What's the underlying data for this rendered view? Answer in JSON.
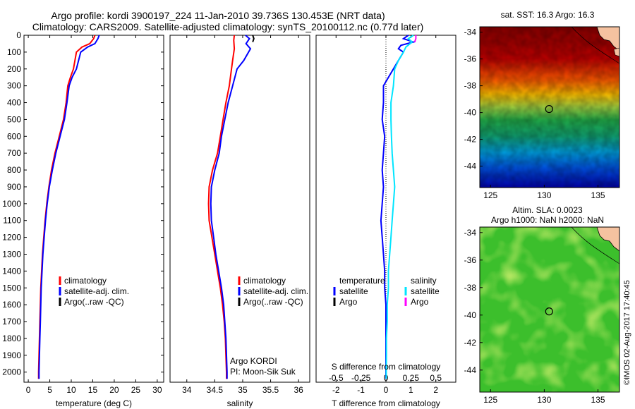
{
  "header": {
    "line1": "Argo profile: kordi 3900197_224 11-Jan-2010 39.736S 130.453E (NRT data)",
    "line2": "Climatology: CARS2009. Satellite-adjusted climatology: synTS_20100112.nc (0.77d later)"
  },
  "colors": {
    "climatology": "#ff0000",
    "satellite": "#0000ff",
    "argo": "#000000",
    "sal_satellite": "#00e5ff",
    "sal_argo": "#ff00ff"
  },
  "chart_data": [
    {
      "type": "line",
      "id": "temperature",
      "xlabel": "temperature (deg C)",
      "xlim": [
        -1,
        31.5
      ],
      "xticks": [
        0,
        5,
        10,
        15,
        20,
        25,
        30
      ],
      "ylim": [
        2060,
        0
      ],
      "yticks": [
        0,
        100,
        200,
        300,
        400,
        500,
        600,
        700,
        800,
        900,
        1000,
        1100,
        1200,
        1300,
        1400,
        1500,
        1600,
        1700,
        1800,
        1900,
        2000
      ],
      "legend": [
        "climatology",
        "satellite-adj. clim.",
        "Argo(..raw -QC)"
      ],
      "series": [
        {
          "name": "climatology",
          "color": "#ff0000",
          "points": [
            [
              15.5,
              0
            ],
            [
              15.2,
              20
            ],
            [
              14.3,
              50
            ],
            [
              12.5,
              70
            ],
            [
              11.2,
              100
            ],
            [
              10.5,
              200
            ],
            [
              9.8,
              250
            ],
            [
              9.2,
              300
            ],
            [
              8.8,
              400
            ],
            [
              8.2,
              500
            ],
            [
              7.2,
              600
            ],
            [
              6.2,
              700
            ],
            [
              5.4,
              800
            ],
            [
              4.8,
              900
            ],
            [
              4.3,
              1000
            ],
            [
              3.9,
              1100
            ],
            [
              3.6,
              1200
            ],
            [
              3.3,
              1300
            ],
            [
              3.1,
              1400
            ],
            [
              2.9,
              1500
            ],
            [
              2.8,
              1600
            ],
            [
              2.7,
              1700
            ],
            [
              2.6,
              1800
            ],
            [
              2.5,
              1900
            ],
            [
              2.4,
              2000
            ],
            [
              2.4,
              2040
            ]
          ]
        },
        {
          "name": "satellite-adj. clim.",
          "color": "#0000ff",
          "points": [
            [
              16.5,
              0
            ],
            [
              16.2,
              20
            ],
            [
              15.5,
              50
            ],
            [
              13.8,
              70
            ],
            [
              12.2,
              100
            ],
            [
              11.2,
              200
            ],
            [
              10.2,
              250
            ],
            [
              9.5,
              300
            ],
            [
              9.0,
              400
            ],
            [
              8.4,
              500
            ],
            [
              7.4,
              600
            ],
            [
              6.4,
              700
            ],
            [
              5.6,
              800
            ],
            [
              4.9,
              900
            ],
            [
              4.4,
              1000
            ],
            [
              4.0,
              1100
            ],
            [
              3.7,
              1200
            ],
            [
              3.4,
              1300
            ],
            [
              3.2,
              1400
            ],
            [
              3.0,
              1500
            ],
            [
              2.9,
              1600
            ],
            [
              2.8,
              1700
            ],
            [
              2.7,
              1800
            ],
            [
              2.6,
              1900
            ],
            [
              2.5,
              2000
            ],
            [
              2.5,
              2040
            ]
          ]
        }
      ]
    },
    {
      "type": "line",
      "id": "salinity",
      "xlabel": "salinity",
      "xlim": [
        33.7,
        36.2
      ],
      "xticks": [
        34,
        34.5,
        35,
        35.5,
        36
      ],
      "ylim": [
        2060,
        0
      ],
      "legend": [
        "climatology",
        "satellite-adj. clim.",
        "Argo(..raw -QC)"
      ],
      "series": [
        {
          "name": "climatology",
          "color": "#ff0000",
          "points": [
            [
              34.85,
              0
            ],
            [
              34.84,
              30
            ],
            [
              34.85,
              80
            ],
            [
              34.82,
              150
            ],
            [
              34.8,
              200
            ],
            [
              34.76,
              300
            ],
            [
              34.7,
              400
            ],
            [
              34.65,
              500
            ],
            [
              34.6,
              600
            ],
            [
              34.55,
              700
            ],
            [
              34.46,
              800
            ],
            [
              34.4,
              900
            ],
            [
              34.39,
              1000
            ],
            [
              34.4,
              1100
            ],
            [
              34.45,
              1200
            ],
            [
              34.5,
              1300
            ],
            [
              34.55,
              1400
            ],
            [
              34.6,
              1500
            ],
            [
              34.64,
              1600
            ],
            [
              34.67,
              1700
            ],
            [
              34.69,
              1800
            ],
            [
              34.7,
              1900
            ],
            [
              34.71,
              2000
            ],
            [
              34.71,
              2040
            ]
          ]
        },
        {
          "name": "satellite-adj. clim.",
          "color": "#0000ff",
          "points": [
            [
              35.05,
              0
            ],
            [
              35.12,
              20
            ],
            [
              35.06,
              50
            ],
            [
              35.14,
              80
            ],
            [
              35.02,
              150
            ],
            [
              34.9,
              200
            ],
            [
              34.82,
              300
            ],
            [
              34.74,
              400
            ],
            [
              34.68,
              500
            ],
            [
              34.62,
              600
            ],
            [
              34.58,
              700
            ],
            [
              34.5,
              800
            ],
            [
              34.44,
              900
            ],
            [
              34.43,
              1000
            ],
            [
              34.44,
              1100
            ],
            [
              34.48,
              1200
            ],
            [
              34.52,
              1300
            ],
            [
              34.57,
              1400
            ],
            [
              34.62,
              1500
            ],
            [
              34.66,
              1600
            ],
            [
              34.68,
              1700
            ],
            [
              34.7,
              1800
            ],
            [
              34.71,
              1900
            ],
            [
              34.72,
              2000
            ],
            [
              34.72,
              2040
            ]
          ]
        },
        {
          "name": "Argo(..raw -QC)",
          "color": "#000000",
          "points": [
            [
              35.18,
              0
            ],
            [
              35.2,
              20
            ],
            [
              35.18,
              40
            ]
          ]
        }
      ]
    },
    {
      "type": "line",
      "id": "difference",
      "xlabel": "T difference from climatology",
      "xlabel2": "S difference from climatology",
      "xlim": [
        -2.8,
        2.8
      ],
      "xticks": [
        -2,
        -1,
        0,
        1,
        2
      ],
      "xticks2": [
        -0.5,
        -0.25,
        0,
        0.25,
        0.5
      ],
      "xticks2_labels": [
        "-0.5",
        "-0.25",
        "0",
        "0.25",
        "0.5"
      ],
      "ylim": [
        2060,
        0
      ],
      "legend_temperature": {
        "title": "temperature",
        "items": [
          "satellite",
          "Argo"
        ]
      },
      "legend_salinity": {
        "title": "salinity",
        "items": [
          "satellite",
          "Argo"
        ]
      },
      "series": [
        {
          "name": "temperature satellite",
          "color": "#0000ff",
          "points": [
            [
              0.9,
              0
            ],
            [
              0.7,
              20
            ],
            [
              1.1,
              40
            ],
            [
              0.6,
              60
            ],
            [
              0.5,
              80
            ],
            [
              0.7,
              100
            ],
            [
              0.5,
              150
            ],
            [
              0.3,
              200
            ],
            [
              0.1,
              250
            ],
            [
              -0.1,
              300
            ],
            [
              -0.1,
              400
            ],
            [
              -0.15,
              500
            ],
            [
              -0.05,
              600
            ],
            [
              -0.1,
              700
            ],
            [
              -0.15,
              800
            ],
            [
              -0.1,
              900
            ],
            [
              -0.15,
              1000
            ],
            [
              -0.2,
              1100
            ],
            [
              -0.15,
              1200
            ],
            [
              -0.1,
              1300
            ],
            [
              -0.05,
              1400
            ],
            [
              -0.05,
              1500
            ],
            [
              0,
              1600
            ],
            [
              0,
              1700
            ],
            [
              0,
              1800
            ],
            [
              0,
              1900
            ],
            [
              0,
              2000
            ],
            [
              0,
              2040
            ]
          ]
        },
        {
          "name": "salinity satellite",
          "color": "#00e5ff",
          "points": [
            [
              1.1,
              0
            ],
            [
              0.9,
              20
            ],
            [
              1.05,
              40
            ],
            [
              0.8,
              70
            ],
            [
              0.7,
              100
            ],
            [
              0.5,
              150
            ],
            [
              0.35,
              200
            ],
            [
              0.3,
              300
            ],
            [
              0.2,
              400
            ],
            [
              0.2,
              500
            ],
            [
              0.22,
              600
            ],
            [
              0.25,
              700
            ],
            [
              0.3,
              800
            ],
            [
              0.35,
              900
            ],
            [
              0.3,
              1000
            ],
            [
              0.25,
              1100
            ],
            [
              0.2,
              1200
            ],
            [
              0.15,
              1300
            ],
            [
              0.1,
              1400
            ],
            [
              0.1,
              1500
            ],
            [
              0.05,
              1600
            ],
            [
              0.05,
              1700
            ],
            [
              0.02,
              1800
            ],
            [
              0.02,
              1900
            ],
            [
              0.01,
              2000
            ],
            [
              0.01,
              2040
            ]
          ]
        },
        {
          "name": "salinity Argo",
          "color": "#ff00ff",
          "points": [
            [
              1.2,
              0
            ],
            [
              1.2,
              20
            ],
            [
              1.15,
              40
            ]
          ]
        }
      ]
    },
    {
      "type": "heatmap",
      "id": "sst-map",
      "title": "sat. SST: 16.3 Argo: 16.3",
      "xlim": [
        124,
        137
      ],
      "ylim": [
        -45.6,
        -33.6
      ],
      "xticks": [
        125,
        130,
        135
      ],
      "yticks": [
        -34,
        -36,
        -38,
        -40,
        -42,
        -44
      ],
      "marker": [
        130.453,
        -39.736
      ]
    },
    {
      "type": "heatmap",
      "id": "sla-map",
      "title": "Altim. SLA: 0.0023",
      "subtitle": "Argo h1000: NaN h2000: NaN",
      "xlim": [
        124,
        137
      ],
      "ylim": [
        -45.6,
        -33.6
      ],
      "xticks": [
        125,
        130,
        135
      ],
      "yticks": [
        -34,
        -36,
        -38,
        -40,
        -42,
        -44
      ],
      "marker": [
        130.453,
        -39.736
      ]
    }
  ],
  "annotations": {
    "argo_name": "Argo KORDI",
    "pi": "PI: Moon-Sik Suk",
    "credit": "©IMOS 02-Aug-2017 17:40:45"
  }
}
